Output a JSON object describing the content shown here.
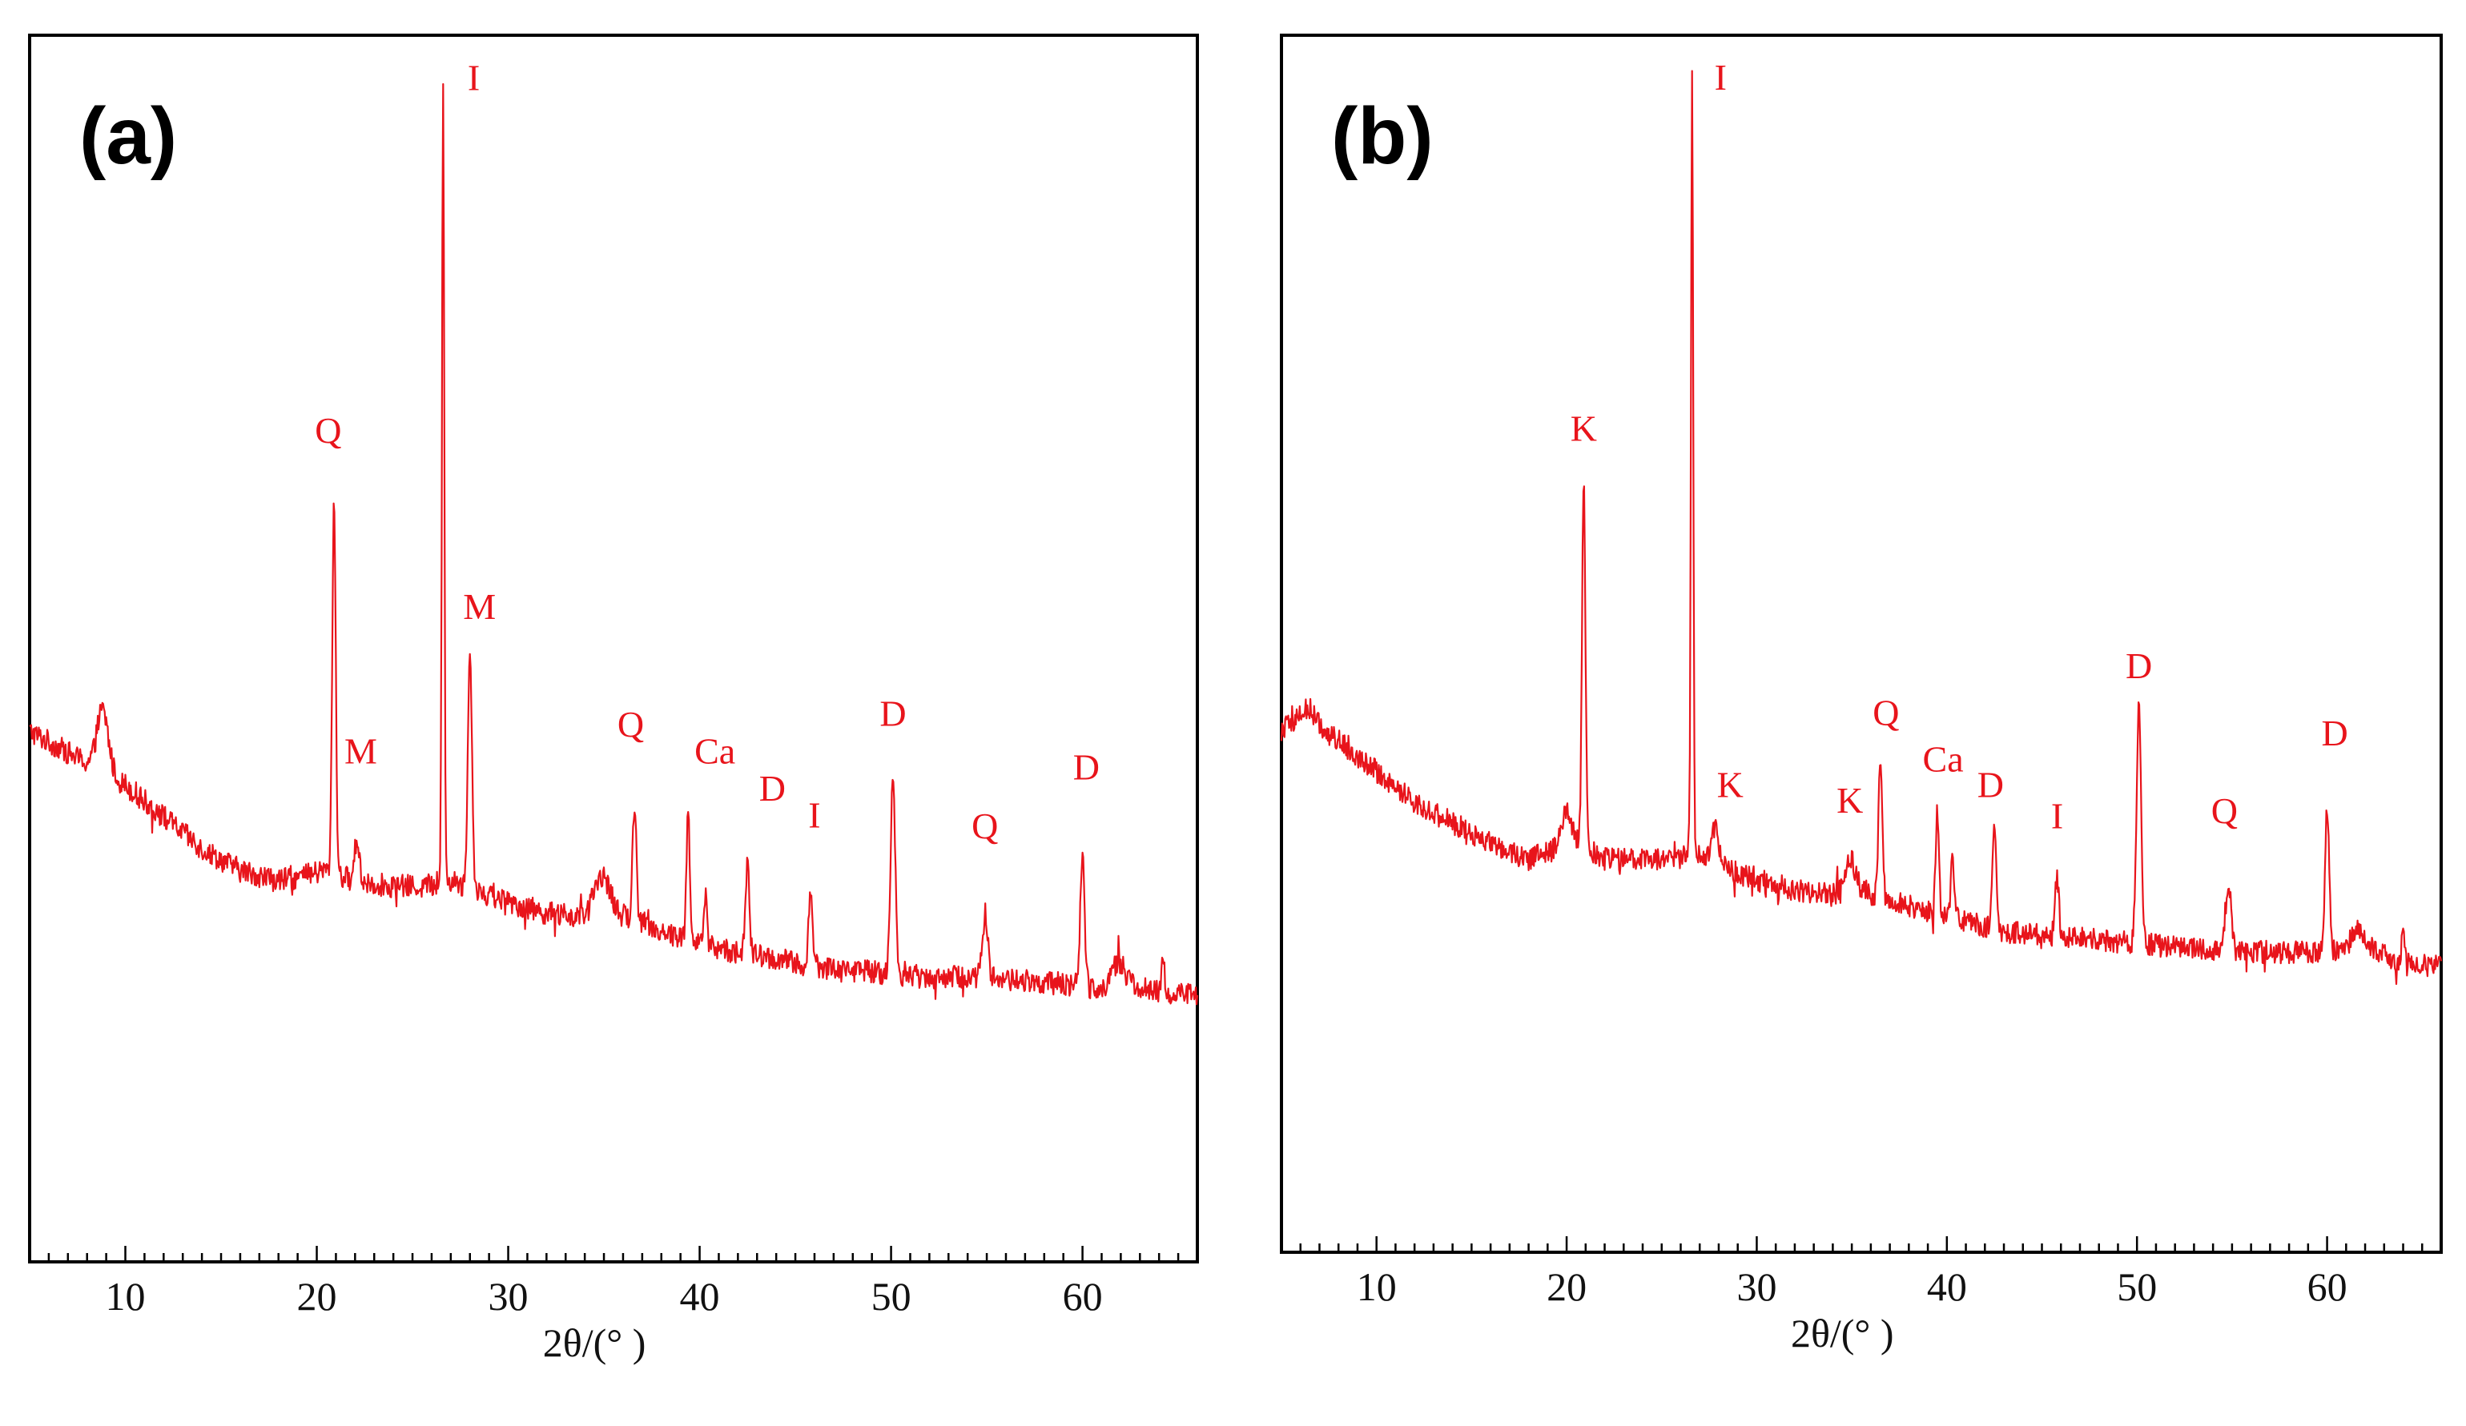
{
  "colors": {
    "trace": "#e8141b",
    "annotation": "#e8141b",
    "axis": "#000000"
  },
  "chart_data": [
    {
      "type": "line",
      "panel_label": "(a)",
      "xlabel": "2θ/(°  )",
      "ylabel": "",
      "xlim": [
        5,
        66
      ],
      "ylim": [
        0,
        100
      ],
      "xticks": [
        "10",
        "20",
        "30",
        "40",
        "50",
        "60"
      ],
      "grid": false,
      "background": [
        [
          5.0,
          39
        ],
        [
          6.0,
          38
        ],
        [
          7.0,
          37
        ],
        [
          8.0,
          36
        ],
        [
          10.0,
          34
        ],
        [
          12.0,
          31
        ],
        [
          14.0,
          28
        ],
        [
          16.0,
          26
        ],
        [
          18.0,
          25
        ],
        [
          19.5,
          25.5
        ],
        [
          20.5,
          26
        ],
        [
          22.0,
          25
        ],
        [
          24.0,
          24.5
        ],
        [
          25.5,
          24.5
        ],
        [
          27.0,
          25
        ],
        [
          28.5,
          24
        ],
        [
          30.0,
          23
        ],
        [
          32.0,
          22
        ],
        [
          34.0,
          21.5
        ],
        [
          35.5,
          22
        ],
        [
          37.0,
          21
        ],
        [
          40.0,
          19
        ],
        [
          43.0,
          18
        ],
        [
          46.0,
          17
        ],
        [
          49.0,
          16.5
        ],
        [
          52.0,
          16
        ],
        [
          55.0,
          16
        ],
        [
          58.0,
          15.5
        ],
        [
          61.0,
          15
        ],
        [
          62.0,
          15.5
        ],
        [
          64.0,
          14.5
        ],
        [
          66.0,
          14.5
        ]
      ],
      "peaks": [
        {
          "x": 8.8,
          "y": 41,
          "width": 0.3
        },
        {
          "x": 20.9,
          "y": 61,
          "width": 0.09
        },
        {
          "x": 22.1,
          "y": 29,
          "width": 0.12
        },
        {
          "x": 26.6,
          "y": 100,
          "width": 0.06
        },
        {
          "x": 28.0,
          "y": 46,
          "width": 0.11
        },
        {
          "x": 34.9,
          "y": 25.5,
          "width": 0.4
        },
        {
          "x": 36.6,
          "y": 32.5,
          "width": 0.1
        },
        {
          "x": 39.4,
          "y": 31.5,
          "width": 0.09
        },
        {
          "x": 40.3,
          "y": 23.5,
          "width": 0.09
        },
        {
          "x": 42.5,
          "y": 26.5,
          "width": 0.1
        },
        {
          "x": 45.8,
          "y": 24,
          "width": 0.1
        },
        {
          "x": 50.1,
          "y": 34.5,
          "width": 0.12
        },
        {
          "x": 54.9,
          "y": 21.5,
          "width": 0.15
        },
        {
          "x": 60.0,
          "y": 27.5,
          "width": 0.11
        },
        {
          "x": 61.9,
          "y": 17.5,
          "width": 0.3
        },
        {
          "x": 64.2,
          "y": 17,
          "width": 0.1
        }
      ],
      "noise_amplitude": 1.1,
      "annotations": [
        {
          "text": "Q",
          "x": 20.6,
          "y": 66
        },
        {
          "text": "I",
          "x": 28.2,
          "y": 99
        },
        {
          "text": "M",
          "x": 28.5,
          "y": 49.5
        },
        {
          "text": "M",
          "x": 22.3,
          "y": 36
        },
        {
          "text": "Q",
          "x": 36.4,
          "y": 38.5
        },
        {
          "text": "Ca",
          "x": 40.8,
          "y": 36
        },
        {
          "text": "D",
          "x": 43.8,
          "y": 32.5
        },
        {
          "text": "I",
          "x": 46.0,
          "y": 30
        },
        {
          "text": "D",
          "x": 50.1,
          "y": 39.5
        },
        {
          "text": "Q",
          "x": 54.9,
          "y": 29
        },
        {
          "text": "D",
          "x": 60.2,
          "y": 34.5
        }
      ]
    },
    {
      "type": "line",
      "panel_label": "(b)",
      "xlabel": "2θ/(°  )",
      "ylabel": "",
      "xlim": [
        5,
        66
      ],
      "ylim": [
        0,
        100
      ],
      "xticks": [
        "10",
        "20",
        "30",
        "40",
        "50",
        "60"
      ],
      "grid": false,
      "background": [
        [
          5.0,
          37
        ],
        [
          6.0,
          38
        ],
        [
          7.0,
          37
        ],
        [
          8.0,
          36
        ],
        [
          10.0,
          33
        ],
        [
          12.0,
          30
        ],
        [
          14.0,
          28
        ],
        [
          16.0,
          26
        ],
        [
          18.0,
          24.5
        ],
        [
          19.5,
          25.5
        ],
        [
          20.5,
          26
        ],
        [
          22.0,
          24.5
        ],
        [
          24.0,
          24.5
        ],
        [
          25.5,
          24.5
        ],
        [
          27.0,
          25
        ],
        [
          28.5,
          23.5
        ],
        [
          30.0,
          22.5
        ],
        [
          32.0,
          21.5
        ],
        [
          34.0,
          21
        ],
        [
          35.5,
          21.5
        ],
        [
          37.0,
          20.5
        ],
        [
          40.0,
          19
        ],
        [
          43.0,
          17.5
        ],
        [
          46.0,
          17
        ],
        [
          49.0,
          16.5
        ],
        [
          52.0,
          16
        ],
        [
          55.0,
          15.5
        ],
        [
          58.0,
          15.5
        ],
        [
          61.0,
          15.5
        ],
        [
          62.0,
          16
        ],
        [
          64.0,
          14.5
        ],
        [
          66.0,
          14
        ]
      ],
      "peaks": [
        {
          "x": 6.4,
          "y": 39,
          "width": 0.35
        },
        {
          "x": 20.0,
          "y": 29,
          "width": 0.25
        },
        {
          "x": 20.9,
          "y": 61,
          "width": 0.09
        },
        {
          "x": 26.6,
          "y": 100,
          "width": 0.06
        },
        {
          "x": 27.8,
          "y": 27.5,
          "width": 0.2
        },
        {
          "x": 34.9,
          "y": 24.5,
          "width": 0.3
        },
        {
          "x": 36.5,
          "y": 33.5,
          "width": 0.1
        },
        {
          "x": 39.5,
          "y": 29,
          "width": 0.09
        },
        {
          "x": 40.3,
          "y": 24.5,
          "width": 0.09
        },
        {
          "x": 42.5,
          "y": 27,
          "width": 0.1
        },
        {
          "x": 45.8,
          "y": 22.5,
          "width": 0.1
        },
        {
          "x": 50.1,
          "y": 39.5,
          "width": 0.12
        },
        {
          "x": 54.8,
          "y": 22,
          "width": 0.15
        },
        {
          "x": 60.0,
          "y": 29.5,
          "width": 0.11
        },
        {
          "x": 61.6,
          "y": 18,
          "width": 0.3
        },
        {
          "x": 64.0,
          "y": 17,
          "width": 0.1
        }
      ],
      "noise_amplitude": 1.1,
      "annotations": [
        {
          "text": "K",
          "x": 20.9,
          "y": 65
        },
        {
          "text": "I",
          "x": 28.1,
          "y": 99
        },
        {
          "text": "K",
          "x": 28.6,
          "y": 30.5
        },
        {
          "text": "K",
          "x": 34.9,
          "y": 29
        },
        {
          "text": "Q",
          "x": 36.8,
          "y": 37.5
        },
        {
          "text": "Ca",
          "x": 39.8,
          "y": 33
        },
        {
          "text": "D",
          "x": 42.3,
          "y": 30.5
        },
        {
          "text": "I",
          "x": 45.8,
          "y": 27.5
        },
        {
          "text": "D",
          "x": 50.1,
          "y": 42
        },
        {
          "text": "Q",
          "x": 54.6,
          "y": 28
        },
        {
          "text": "D",
          "x": 60.4,
          "y": 35.5
        }
      ]
    }
  ]
}
